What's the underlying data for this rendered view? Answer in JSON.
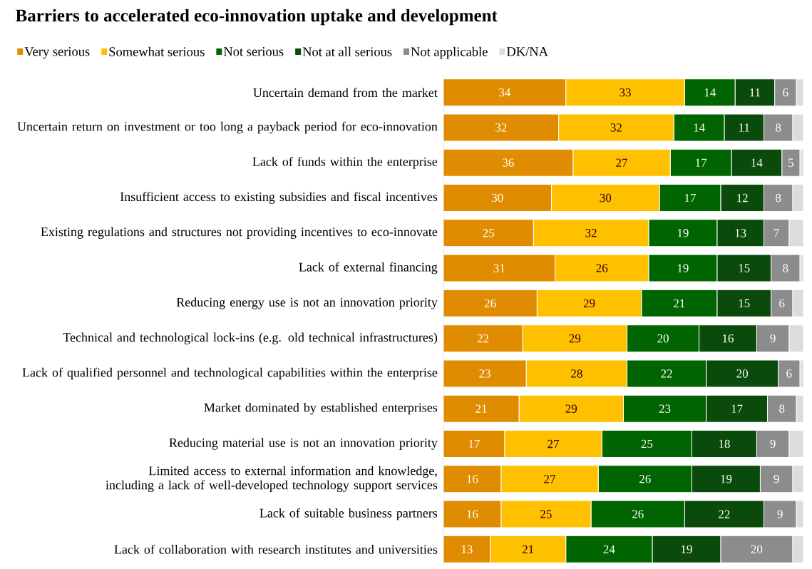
{
  "chart_data": {
    "type": "bar",
    "orientation": "horizontal",
    "stacked": true,
    "title": "Barriers to accelerated eco-innovation uptake and development",
    "legend": "top",
    "categories": [
      "Uncertain demand from the market",
      "Uncertain return on investment or too long a payback period for eco-innovation",
      "Lack of funds within the enterprise",
      "Insufficient access to existing subsidies and fiscal incentives",
      "Existing regulations and structures not providing incentives to eco-innovate",
      "Lack of external financing",
      "Reducing energy use is not an innovation priority",
      "Technical and technological lock-ins (e.g. old technical infrastructures)",
      "Lack of qualified personnel and technological capabilities within the enterprise",
      "Market dominated by established enterprises",
      "Reducing material use is not an innovation priority",
      "Limited access to external information and knowledge, including a lack of well-developed technology support services",
      "Lack of suitable business partners",
      "Lack of collaboration with research institutes and universities"
    ],
    "series": [
      {
        "name": "Very serious",
        "color": "#e08c00",
        "values": [
          34,
          32,
          36,
          30,
          25,
          31,
          26,
          22,
          23,
          21,
          17,
          16,
          16,
          13
        ],
        "value_labels": [
          "34",
          "32",
          "36",
          "30",
          "25",
          "31",
          "26",
          "22",
          "23",
          "21",
          "17",
          "16",
          "16",
          "13"
        ]
      },
      {
        "name": "Somewhat serious",
        "color": "#ffc000",
        "values": [
          33,
          32,
          27,
          30,
          32,
          26,
          29,
          29,
          28,
          29,
          27,
          27,
          25,
          21
        ],
        "value_labels": [
          "33",
          "32",
          "27",
          "30",
          "32",
          "26",
          "29",
          "29",
          "28",
          "29",
          "27",
          "27",
          "25",
          "21"
        ]
      },
      {
        "name": "Not serious",
        "color": "#006400",
        "values": [
          14,
          14,
          17,
          17,
          19,
          19,
          21,
          20,
          22,
          23,
          25,
          26,
          26,
          24
        ],
        "value_labels": [
          "14",
          "14",
          "17",
          "17",
          "19",
          "19",
          "21",
          "20",
          "22",
          "23",
          "25",
          "26",
          "26",
          "24"
        ]
      },
      {
        "name": "Not at all serious",
        "color": "#0a4a0a",
        "values": [
          11,
          11,
          14,
          12,
          13,
          15,
          15,
          16,
          20,
          17,
          18,
          19,
          22,
          19
        ],
        "value_labels": [
          "11",
          "11",
          "14",
          "12",
          "13",
          "15",
          "15",
          "16",
          "20",
          "17",
          "18",
          "19",
          "22",
          "19"
        ]
      },
      {
        "name": "Not applicable",
        "color": "#8c8c8c",
        "values": [
          6,
          8,
          5,
          8,
          7,
          8,
          6,
          9,
          6,
          8,
          9,
          9,
          9,
          20
        ],
        "value_labels": [
          "6",
          "8",
          "5",
          "8",
          "7",
          "8",
          "6",
          "9",
          "6",
          "8",
          "9",
          "9",
          "9",
          "20"
        ]
      },
      {
        "name": "DK/NA",
        "color": "#dcdcdc",
        "values": [
          2,
          3,
          1,
          3,
          4,
          1,
          3,
          4,
          1,
          2,
          4,
          3,
          2,
          3
        ]
      }
    ]
  }
}
